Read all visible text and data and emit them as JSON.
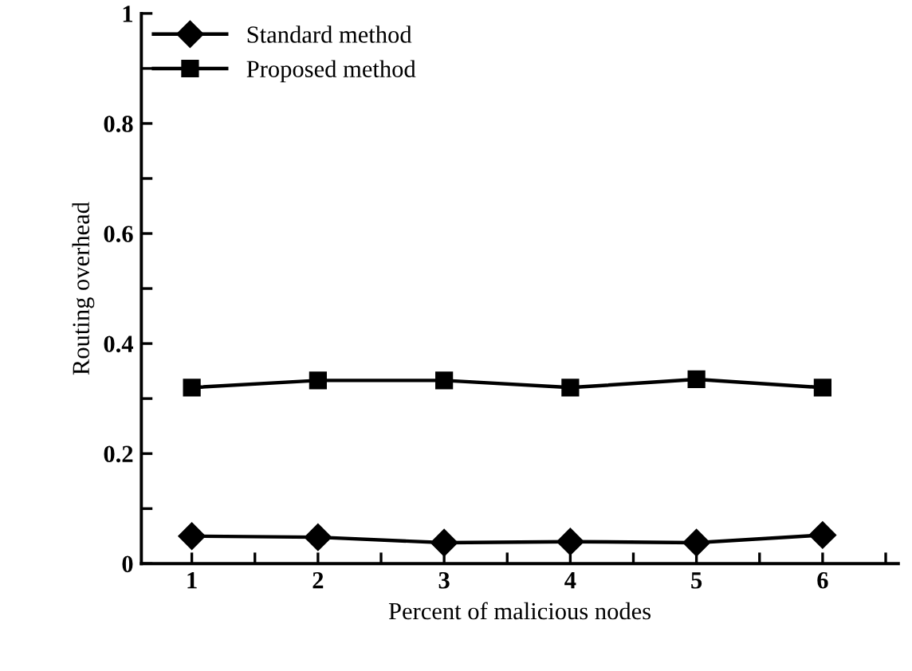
{
  "chart_data": {
    "type": "line",
    "xlabel": "Percent of malicious nodes",
    "ylabel": "Routing overhead",
    "x": [
      1,
      2,
      3,
      4,
      5,
      6
    ],
    "series": [
      {
        "name": "Standard method",
        "color": "#000000",
        "marker": "diamond",
        "values": [
          0.05,
          0.048,
          0.038,
          0.04,
          0.038,
          0.052
        ]
      },
      {
        "name": "Proposed method",
        "color": "#000000",
        "marker": "square",
        "values": [
          0.32,
          0.333,
          0.333,
          0.32,
          0.335,
          0.32
        ]
      }
    ],
    "xlim": [
      0.6,
      6.6
    ],
    "xticks": [
      1,
      {
        "value": 1.5,
        "label": null
      },
      2,
      {
        "value": 2.5,
        "label": null
      },
      3,
      {
        "value": 3.5,
        "label": null
      },
      4,
      {
        "value": 4.5,
        "label": null
      },
      5,
      {
        "value": 5.5,
        "label": null
      },
      6,
      {
        "value": 6.5,
        "label": null
      }
    ],
    "ylim": [
      0,
      1
    ],
    "yticks": [
      0,
      {
        "value": 0.1,
        "label": null
      },
      0.2,
      {
        "value": 0.3,
        "label": null
      },
      0.4,
      {
        "value": 0.5,
        "label": null
      },
      0.6,
      {
        "value": 0.7,
        "label": null
      },
      0.8,
      {
        "value": 0.9,
        "label": null
      },
      1
    ],
    "legend": "top left",
    "grid": false,
    "line_style": "solid"
  }
}
